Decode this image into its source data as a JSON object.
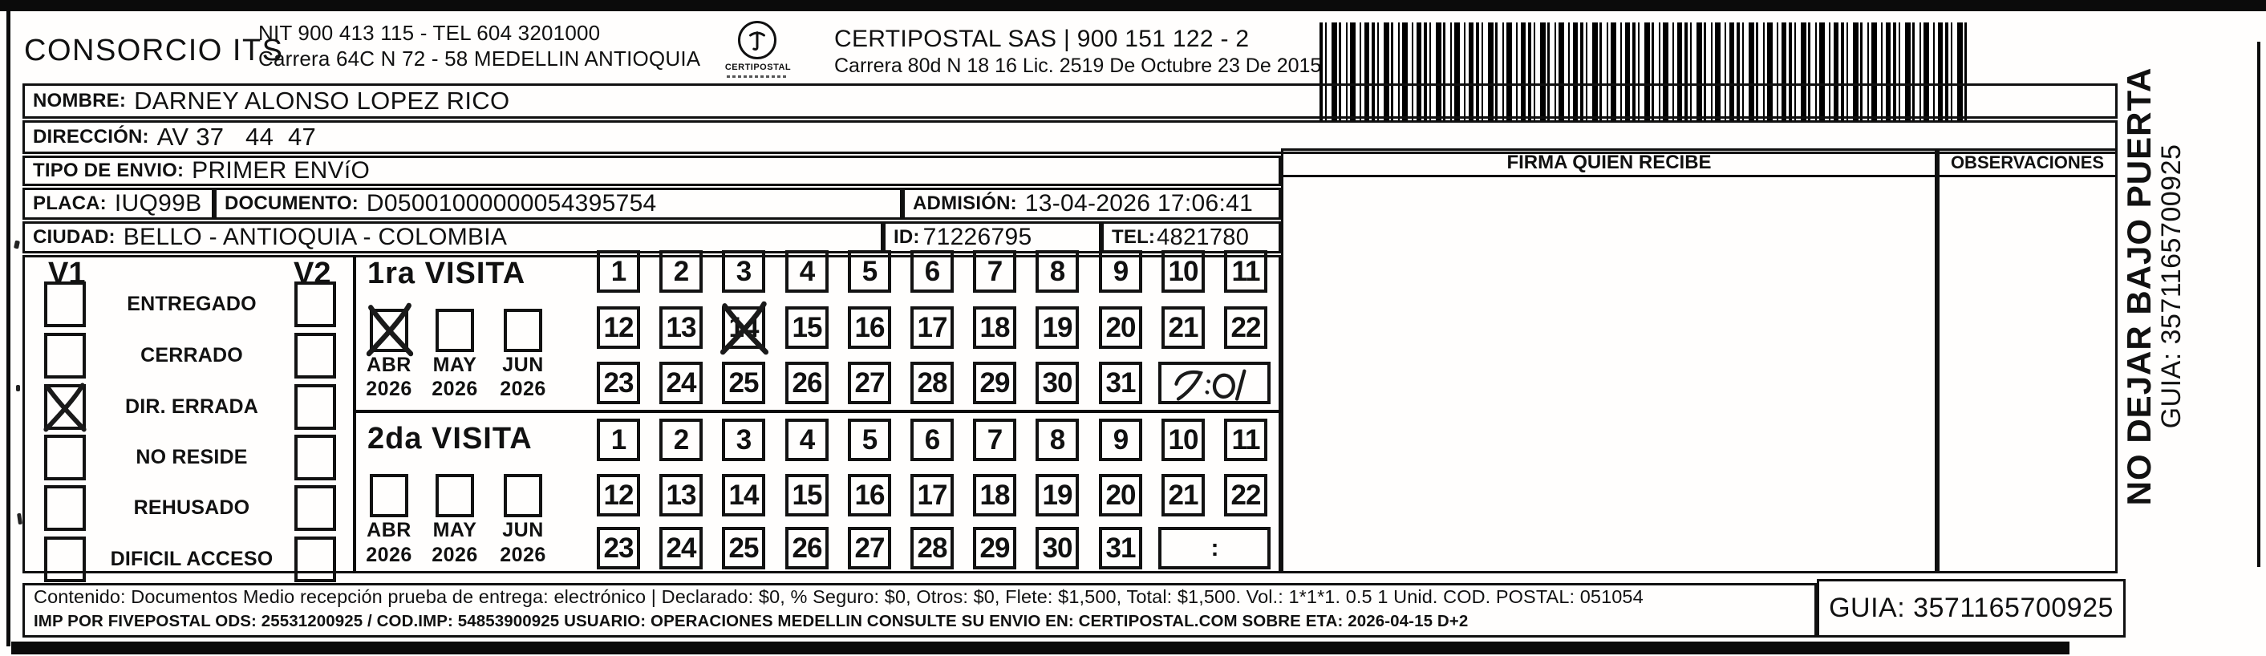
{
  "header": {
    "company": "CONSORCIO ITS",
    "nit_line1": "NIT 900 413 115 - TEL 604 3201000",
    "nit_line2": "Carrera 64C N 72 - 58 MEDELLIN ANTIOQUIA",
    "logo_text": "CERTIPOSTAL",
    "certipostal_line1": "CERTIPOSTAL SAS | 900 151 122 - 2",
    "certipostal_line2": "Carrera 80d N 18 16  Lic. 2519 De Octubre 23 De 2015"
  },
  "recipient": {
    "nombre_label": "NOMBRE:",
    "nombre": "DARNEY ALONSO LOPEZ RICO",
    "direccion_label": "DIRECCIÓN:",
    "direccion": "AV 37   44  47",
    "tipo_label": "TIPO DE ENVIO:",
    "tipo": "PRIMER ENVíO",
    "placa_label": "PLACA:",
    "placa": "IUQ99B",
    "documento_label": "DOCUMENTO:",
    "documento": "D05001000000054395754",
    "admision_label": "ADMISIÓN:",
    "admision": "13-04-2026 17:06:41",
    "ciudad_label": "CIUDAD:",
    "ciudad": "BELLO - ANTIOQUIA - COLOMBIA",
    "id_label": "ID:",
    "id": "71226795",
    "tel_label": "TEL:",
    "tel": "4821780"
  },
  "columns": {
    "firma": "FIRMA QUIEN RECIBE",
    "observaciones": "OBSERVACIONES"
  },
  "status": {
    "v1": "V1",
    "v2": "V2",
    "items": [
      {
        "slug": "entregado",
        "label": "ENTREGADO",
        "v1_checked": false,
        "v2_checked": false
      },
      {
        "slug": "cerrado",
        "label": "CERRADO",
        "v1_checked": false,
        "v2_checked": false
      },
      {
        "slug": "dir-errada",
        "label": "DIR. ERRADA",
        "v1_checked": true,
        "v2_checked": false
      },
      {
        "slug": "no-reside",
        "label": "NO RESIDE",
        "v1_checked": false,
        "v2_checked": false
      },
      {
        "slug": "rehusado",
        "label": "REHUSADO",
        "v1_checked": false,
        "v2_checked": false
      },
      {
        "slug": "dificil-acceso",
        "label": "DIFICIL ACCESO",
        "v1_checked": false,
        "v2_checked": false
      }
    ]
  },
  "visits": [
    {
      "title": "1ra VISITA",
      "months": [
        "ABR",
        "MAY",
        "JUN"
      ],
      "year": "2026",
      "checked_month": "ABR",
      "days": [
        1,
        2,
        3,
        4,
        5,
        6,
        7,
        8,
        9,
        10,
        11,
        12,
        13,
        14,
        15,
        16,
        17,
        18,
        19,
        20,
        21,
        22,
        23,
        24,
        25,
        26,
        27,
        28,
        29,
        30,
        31
      ],
      "checked_day": 14,
      "time": "7:01",
      "handwritten": true
    },
    {
      "title": "2da VISITA",
      "months": [
        "ABR",
        "MAY",
        "JUN"
      ],
      "year": "2026",
      "checked_month": null,
      "days": [
        1,
        2,
        3,
        4,
        5,
        6,
        7,
        8,
        9,
        10,
        11,
        12,
        13,
        14,
        15,
        16,
        17,
        18,
        19,
        20,
        21,
        22,
        23,
        24,
        25,
        26,
        27,
        28,
        29,
        30,
        31
      ],
      "checked_day": null,
      "time": ":",
      "handwritten": false
    }
  ],
  "footer": {
    "line1": "Contenido: Documentos Medio recepción prueba de entrega: electrónico | Declarado: $0, % Seguro: $0, Otros: $0, Flete: $1,500, Total: $1,500. Vol.: 1*1*1. 0.5  1 Unid. COD. POSTAL: 051054",
    "line2": "IMP POR FIVEPOSTAL ODS: 25531200925 / COD.IMP: 54853900925 USUARIO: OPERACIONES MEDELLIN CONSULTE SU ENVIO EN: CERTIPOSTAL.COM SOBRE ETA: 2026-04-15 D+2",
    "guia": "GUIA: 3571165700925"
  },
  "side": {
    "warning": "NO DEJAR BAJO PUERTA",
    "guia": "GUIA: 3571165700925"
  }
}
